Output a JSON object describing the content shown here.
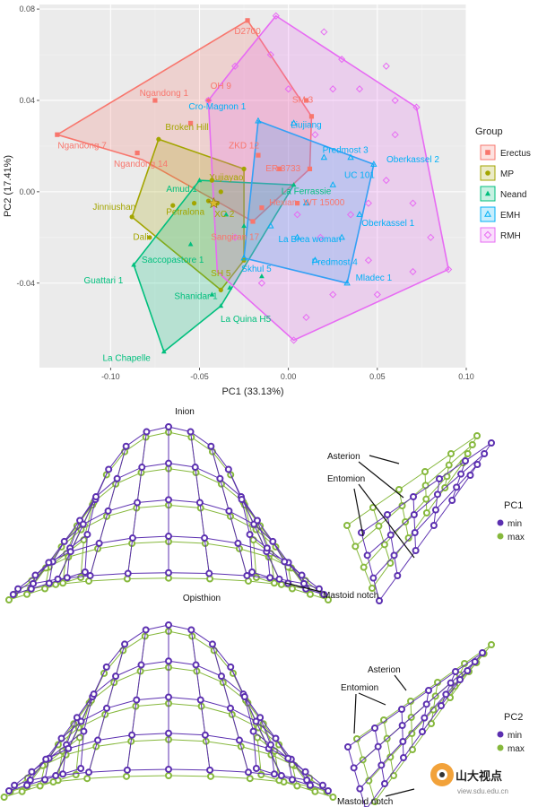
{
  "chart_data": [
    {
      "type": "scatter",
      "subtype": "pca-convex-hull",
      "xlabel": "PC1 (33.13%)",
      "ylabel": "PC2 (17.41%)",
      "xlim": [
        -0.14,
        0.1
      ],
      "ylim": [
        -0.077,
        0.082
      ],
      "xticks": [
        -0.1,
        -0.05,
        0.0,
        0.05,
        0.1
      ],
      "yticks": [
        -0.04,
        0.0,
        0.04,
        0.08
      ],
      "xtick_labels": [
        "-0.10",
        "-0.05",
        "0.00",
        "0.05",
        "0.10"
      ],
      "ytick_labels": [
        "-0.04",
        "0.00",
        "0.04",
        "0.08"
      ],
      "legend_title": "Group",
      "legend_position": "right",
      "groups": [
        {
          "name": "Erectus",
          "color": "#F8766D",
          "marker": "square",
          "hull": [
            [
              -0.023,
              0.075
            ],
            [
              0.013,
              0.033
            ],
            [
              0.012,
              0.01
            ],
            [
              -0.02,
              -0.013
            ],
            [
              -0.082,
              0.014
            ],
            [
              -0.13,
              0.025
            ]
          ],
          "points": [
            [
              -0.023,
              0.075
            ],
            [
              -0.075,
              0.04
            ],
            [
              -0.13,
              0.025
            ],
            [
              -0.085,
              0.017
            ],
            [
              -0.045,
              0.04
            ],
            [
              0.01,
              0.04
            ],
            [
              -0.017,
              0.016
            ],
            [
              -0.005,
              0.01
            ],
            [
              -0.02,
              -0.013
            ],
            [
              -0.015,
              -0.007
            ],
            [
              0.013,
              0.033
            ],
            [
              0.012,
              0.01
            ],
            [
              0.005,
              -0.005
            ],
            [
              -0.055,
              0.03
            ]
          ]
        },
        {
          "name": "MP",
          "color": "#A3A500",
          "marker": "circle",
          "hull": [
            [
              -0.073,
              0.023
            ],
            [
              -0.025,
              0.01
            ],
            [
              -0.025,
              -0.03
            ],
            [
              -0.038,
              -0.043
            ],
            [
              -0.088,
              -0.011
            ]
          ],
          "points": [
            [
              -0.073,
              0.023
            ],
            [
              -0.088,
              -0.011
            ],
            [
              -0.078,
              -0.02
            ],
            [
              -0.065,
              -0.006
            ],
            [
              -0.053,
              -0.005
            ],
            [
              -0.045,
              -0.004
            ],
            [
              -0.038,
              0.0
            ],
            [
              -0.025,
              0.01
            ],
            [
              -0.025,
              -0.03
            ],
            [
              -0.038,
              -0.043
            ],
            [
              -0.04,
              -0.005
            ],
            [
              -0.043,
              0.005
            ]
          ]
        },
        {
          "name": "Neand",
          "color": "#00BF7D",
          "marker": "triangle",
          "hull": [
            [
              -0.05,
              0.005
            ],
            [
              0.003,
              0.003
            ],
            [
              -0.038,
              -0.05
            ],
            [
              -0.07,
              -0.07
            ],
            [
              -0.087,
              -0.032
            ]
          ],
          "points": [
            [
              -0.087,
              -0.032
            ],
            [
              -0.07,
              -0.07
            ],
            [
              -0.043,
              -0.045
            ],
            [
              -0.038,
              -0.05
            ],
            [
              -0.015,
              -0.037
            ],
            [
              -0.025,
              -0.015
            ],
            [
              -0.035,
              -0.01
            ],
            [
              -0.05,
              0.005
            ],
            [
              0.003,
              0.003
            ],
            [
              -0.033,
              -0.042
            ],
            [
              -0.055,
              -0.023
            ]
          ]
        },
        {
          "name": "EMH",
          "color": "#00B0F6",
          "marker": "triangle-open",
          "hull": [
            [
              -0.017,
              0.031
            ],
            [
              0.048,
              0.012
            ],
            [
              0.033,
              -0.04
            ],
            [
              -0.025,
              -0.029
            ]
          ],
          "points": [
            [
              -0.017,
              0.031
            ],
            [
              0.003,
              0.03
            ],
            [
              0.02,
              0.015
            ],
            [
              0.048,
              0.012
            ],
            [
              0.035,
              0.015
            ],
            [
              0.025,
              0.003
            ],
            [
              0.01,
              -0.005
            ],
            [
              0.005,
              -0.02
            ],
            [
              -0.025,
              -0.029
            ],
            [
              0.033,
              -0.04
            ],
            [
              0.015,
              -0.03
            ],
            [
              0.03,
              -0.02
            ],
            [
              -0.01,
              -0.015
            ],
            [
              0.04,
              -0.01
            ]
          ]
        },
        {
          "name": "RMH",
          "color": "#E76BF3",
          "marker": "diamond-open",
          "hull": [
            [
              -0.007,
              0.077
            ],
            [
              0.072,
              0.037
            ],
            [
              0.09,
              -0.034
            ],
            [
              0.003,
              -0.065
            ],
            [
              -0.04,
              -0.035
            ],
            [
              -0.045,
              0.04
            ],
            [
              -0.03,
              0.055
            ]
          ],
          "points": [
            [
              -0.007,
              0.077
            ],
            [
              0.072,
              0.037
            ],
            [
              0.09,
              -0.034
            ],
            [
              0.003,
              -0.065
            ],
            [
              0.02,
              0.07
            ],
            [
              0.055,
              0.055
            ],
            [
              0.04,
              0.045
            ],
            [
              0.025,
              0.045
            ],
            [
              0.06,
              0.025
            ],
            [
              0.055,
              0.005
            ],
            [
              0.07,
              -0.005
            ],
            [
              0.08,
              -0.02
            ],
            [
              0.07,
              -0.035
            ],
            [
              0.045,
              -0.03
            ],
            [
              0.025,
              -0.045
            ],
            [
              0.01,
              -0.055
            ],
            [
              -0.015,
              -0.04
            ],
            [
              -0.03,
              -0.02
            ],
            [
              0.015,
              0.025
            ],
            [
              0.0,
              0.045
            ],
            [
              -0.03,
              0.055
            ],
            [
              -0.045,
              0.04
            ],
            [
              0.035,
              -0.01
            ],
            [
              0.05,
              -0.045
            ],
            [
              0.06,
              0.04
            ],
            [
              0.005,
              -0.01
            ],
            [
              0.045,
              -0.005
            ],
            [
              0.018,
              -0.02
            ],
            [
              0.03,
              0.058
            ],
            [
              -0.01,
              0.06
            ]
          ]
        }
      ],
      "labels": [
        {
          "text": "D2700",
          "x": -0.023,
          "y": 0.069,
          "group": "Erectus"
        },
        {
          "text": "OH 9",
          "x": -0.038,
          "y": 0.045,
          "group": "Erectus"
        },
        {
          "text": "Ngandong 1",
          "x": -0.07,
          "y": 0.042,
          "group": "Erectus"
        },
        {
          "text": "SM 3",
          "x": 0.008,
          "y": 0.039,
          "group": "Erectus"
        },
        {
          "text": "Ngandong 7",
          "x": -0.116,
          "y": 0.019,
          "group": "Erectus"
        },
        {
          "text": "Ngandong 14",
          "x": -0.083,
          "y": 0.011,
          "group": "Erectus"
        },
        {
          "text": "ZKD 12",
          "x": -0.025,
          "y": 0.019,
          "group": "Erectus"
        },
        {
          "text": "ER 3733",
          "x": -0.003,
          "y": 0.009,
          "group": "Erectus"
        },
        {
          "text": "Hexian",
          "x": -0.003,
          "y": -0.006,
          "group": "Erectus"
        },
        {
          "text": "WT 15000",
          "x": 0.02,
          "y": -0.006,
          "group": "Erectus"
        },
        {
          "text": "Sangiran 17",
          "x": -0.03,
          "y": -0.021,
          "group": "Erectus"
        },
        {
          "text": "Broken Hill",
          "x": -0.057,
          "y": 0.027,
          "group": "MP"
        },
        {
          "text": "Xujiayao",
          "x": -0.035,
          "y": 0.005,
          "group": "MP"
        },
        {
          "text": "Jinniushan",
          "x": -0.098,
          "y": -0.008,
          "group": "MP"
        },
        {
          "text": "Petralona",
          "x": -0.058,
          "y": -0.01,
          "group": "MP"
        },
        {
          "text": "XC 2",
          "x": -0.036,
          "y": -0.011,
          "group": "MP"
        },
        {
          "text": "Dali",
          "x": -0.083,
          "y": -0.021,
          "group": "MP"
        },
        {
          "text": "SH 5",
          "x": -0.038,
          "y": -0.037,
          "group": "MP"
        },
        {
          "text": "Amud 1",
          "x": -0.06,
          "y": 0.0,
          "group": "Neand"
        },
        {
          "text": "La Ferrassie",
          "x": 0.01,
          "y": -0.001,
          "group": "Neand"
        },
        {
          "text": "Saccopastore 1",
          "x": -0.065,
          "y": -0.031,
          "group": "Neand"
        },
        {
          "text": "Guattari 1",
          "x": -0.104,
          "y": -0.04,
          "group": "Neand"
        },
        {
          "text": "Shanidar 1",
          "x": -0.052,
          "y": -0.047,
          "group": "Neand"
        },
        {
          "text": "La Quina H5",
          "x": -0.024,
          "y": -0.057,
          "group": "Neand"
        },
        {
          "text": "La Chapelle",
          "x": -0.091,
          "y": -0.074,
          "group": "Neand"
        },
        {
          "text": "Cro-Magnon 1",
          "x": -0.04,
          "y": 0.036,
          "group": "EMH"
        },
        {
          "text": "Liujiang",
          "x": 0.01,
          "y": 0.028,
          "group": "EMH"
        },
        {
          "text": "Predmost 3",
          "x": 0.032,
          "y": 0.017,
          "group": "EMH"
        },
        {
          "text": "Oberkassel 2",
          "x": 0.07,
          "y": 0.013,
          "group": "EMH"
        },
        {
          "text": "UC 101",
          "x": 0.04,
          "y": 0.006,
          "group": "EMH"
        },
        {
          "text": "Oberkassel 1",
          "x": 0.056,
          "y": -0.015,
          "group": "EMH"
        },
        {
          "text": "La Brea woman",
          "x": 0.012,
          "y": -0.022,
          "group": "EMH"
        },
        {
          "text": "Skhul 5",
          "x": -0.018,
          "y": -0.035,
          "group": "EMH"
        },
        {
          "text": "Predmost 4",
          "x": 0.026,
          "y": -0.032,
          "group": "EMH"
        },
        {
          "text": "Mladec 1",
          "x": 0.048,
          "y": -0.039,
          "group": "EMH"
        }
      ]
    },
    {
      "type": "diagram",
      "subtype": "wireframe-shape-change",
      "legend_title": "PC1",
      "legend": [
        {
          "label": "min",
          "color": "#5b2fb0"
        },
        {
          "label": "max",
          "color": "#86b83c"
        }
      ],
      "annotations": [
        "Inion",
        "Asterion",
        "Entomion",
        "Opisthion",
        "Mastoid notch"
      ]
    },
    {
      "type": "diagram",
      "subtype": "wireframe-shape-change",
      "legend_title": "PC2",
      "legend": [
        {
          "label": "min",
          "color": "#5b2fb0"
        },
        {
          "label": "max",
          "color": "#86b83c"
        }
      ],
      "annotations": [
        "Asterion",
        "Entomion",
        "Mastoid notch"
      ]
    }
  ],
  "watermark": {
    "text": "山大视点",
    "url": "view.sdu.edu.cn"
  }
}
